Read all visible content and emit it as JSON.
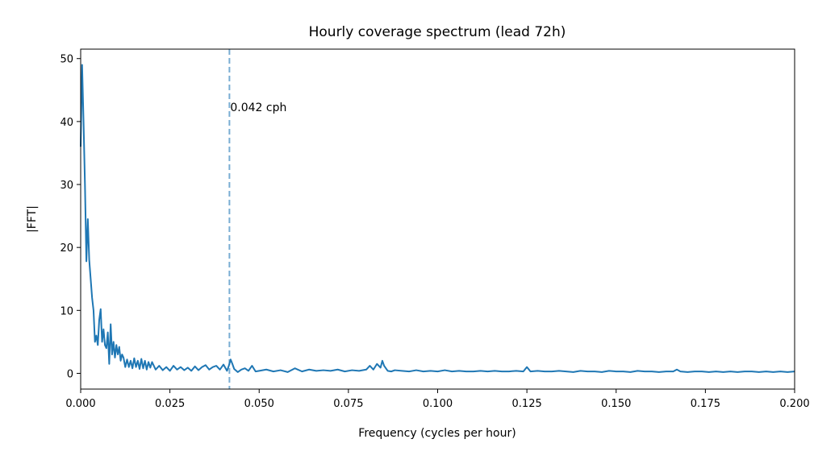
{
  "chart_data": {
    "type": "line",
    "title": "Hourly coverage spectrum (lead 72h)",
    "xlabel": "Frequency (cycles per hour)",
    "ylabel": "|FFT|",
    "xlim": [
      0,
      0.2
    ],
    "ylim": [
      -2.5,
      51.5
    ],
    "xticks": [
      0,
      0.025,
      0.05,
      0.075,
      0.1,
      0.125,
      0.15,
      0.175,
      0.2
    ],
    "xtick_labels": [
      "0.000",
      "0.025",
      "0.050",
      "0.075",
      "0.100",
      "0.125",
      "0.150",
      "0.175",
      "0.200"
    ],
    "yticks": [
      0,
      10,
      20,
      30,
      40,
      50
    ],
    "ytick_labels": [
      "0",
      "10",
      "20",
      "30",
      "40",
      "50"
    ],
    "grid": false,
    "line_color": "#1f77b4",
    "annotation": {
      "x": 0.04167,
      "label": "0.042 cph",
      "label_y": 42.3,
      "color": "#1f77b4",
      "style": "dashed"
    },
    "series": [
      {
        "values_x": [
          0.0,
          0.0004,
          0.0008,
          0.0012,
          0.0016,
          0.002,
          0.0024,
          0.0028,
          0.0032,
          0.0036,
          0.004,
          0.0044,
          0.0048,
          0.0052,
          0.0056,
          0.006,
          0.0064,
          0.0068,
          0.0072,
          0.0076,
          0.008,
          0.0084,
          0.0088,
          0.0092,
          0.0096,
          0.01,
          0.0104,
          0.0108,
          0.0112,
          0.0116,
          0.012,
          0.0125,
          0.013,
          0.0135,
          0.014,
          0.0145,
          0.015,
          0.0155,
          0.016,
          0.0165,
          0.017,
          0.0175,
          0.018,
          0.0185,
          0.019,
          0.0195,
          0.02,
          0.021,
          0.022,
          0.023,
          0.024,
          0.025,
          0.026,
          0.027,
          0.028,
          0.029,
          0.03,
          0.031,
          0.032,
          0.033,
          0.034,
          0.035,
          0.036,
          0.037,
          0.038,
          0.039,
          0.04,
          0.041,
          0.0415,
          0.042,
          0.0425,
          0.043,
          0.044,
          0.045,
          0.046,
          0.047,
          0.048,
          0.049,
          0.05,
          0.052,
          0.054,
          0.056,
          0.058,
          0.06,
          0.062,
          0.064,
          0.066,
          0.068,
          0.07,
          0.072,
          0.074,
          0.076,
          0.078,
          0.08,
          0.081,
          0.082,
          0.083,
          0.084,
          0.0845,
          0.085,
          0.086,
          0.087,
          0.088,
          0.09,
          0.092,
          0.094,
          0.096,
          0.098,
          0.1,
          0.102,
          0.104,
          0.106,
          0.108,
          0.11,
          0.112,
          0.114,
          0.116,
          0.118,
          0.12,
          0.122,
          0.124,
          0.125,
          0.126,
          0.128,
          0.13,
          0.132,
          0.134,
          0.136,
          0.138,
          0.14,
          0.142,
          0.144,
          0.146,
          0.148,
          0.15,
          0.152,
          0.154,
          0.156,
          0.158,
          0.16,
          0.162,
          0.164,
          0.166,
          0.167,
          0.168,
          0.17,
          0.172,
          0.174,
          0.176,
          0.178,
          0.18,
          0.182,
          0.184,
          0.186,
          0.188,
          0.19,
          0.192,
          0.194,
          0.196,
          0.198,
          0.2
        ],
        "values_y": [
          36.0,
          49.0,
          40.0,
          30.0,
          17.8,
          24.5,
          18.0,
          15.0,
          12.0,
          10.0,
          5.0,
          6.0,
          4.5,
          8.5,
          10.2,
          5.0,
          7.0,
          4.5,
          4.0,
          6.5,
          1.5,
          7.8,
          3.0,
          5.0,
          2.5,
          4.5,
          3.0,
          4.2,
          2.0,
          3.0,
          2.5,
          1.0,
          2.2,
          1.0,
          2.0,
          0.8,
          2.4,
          1.0,
          2.0,
          0.7,
          2.3,
          0.8,
          2.0,
          0.6,
          1.8,
          0.9,
          1.8,
          0.6,
          1.2,
          0.5,
          1.0,
          0.4,
          1.2,
          0.6,
          1.0,
          0.5,
          0.9,
          0.4,
          1.1,
          0.5,
          1.0,
          1.3,
          0.6,
          1.0,
          1.2,
          0.6,
          1.4,
          0.4,
          1.2,
          2.2,
          1.5,
          0.7,
          0.2,
          0.6,
          0.8,
          0.4,
          1.2,
          0.3,
          0.4,
          0.6,
          0.3,
          0.5,
          0.2,
          0.8,
          0.3,
          0.6,
          0.4,
          0.5,
          0.4,
          0.6,
          0.3,
          0.5,
          0.4,
          0.6,
          1.2,
          0.6,
          1.5,
          0.9,
          2.0,
          1.2,
          0.4,
          0.3,
          0.5,
          0.4,
          0.3,
          0.5,
          0.3,
          0.4,
          0.3,
          0.5,
          0.3,
          0.4,
          0.3,
          0.3,
          0.4,
          0.3,
          0.4,
          0.3,
          0.3,
          0.4,
          0.3,
          1.0,
          0.3,
          0.4,
          0.3,
          0.3,
          0.4,
          0.3,
          0.2,
          0.4,
          0.3,
          0.3,
          0.2,
          0.4,
          0.3,
          0.3,
          0.2,
          0.4,
          0.3,
          0.3,
          0.2,
          0.3,
          0.3,
          0.6,
          0.3,
          0.2,
          0.3,
          0.3,
          0.2,
          0.3,
          0.2,
          0.3,
          0.2,
          0.3,
          0.3,
          0.2,
          0.3,
          0.2,
          0.3,
          0.2,
          0.3
        ]
      }
    ]
  }
}
